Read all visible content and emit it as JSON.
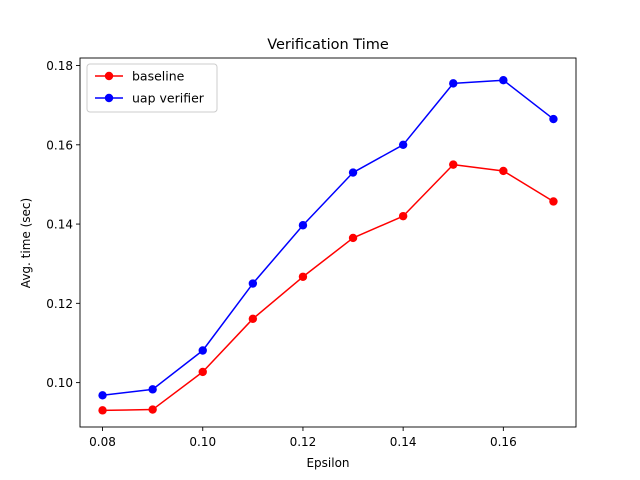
{
  "chart_data": {
    "type": "line",
    "title": "Verification Time",
    "xlabel": "Epsilon",
    "ylabel": "Avg. time (sec)",
    "x": [
      0.08,
      0.09,
      0.1,
      0.11,
      0.12,
      0.13,
      0.14,
      0.15,
      0.16,
      0.17
    ],
    "xlim": [
      0.0755,
      0.1745
    ],
    "ylim": [
      0.0888,
      0.1819
    ],
    "xticks": [
      0.08,
      0.1,
      0.12,
      0.14,
      0.16
    ],
    "xtick_labels": [
      "0.08",
      "0.10",
      "0.12",
      "0.14",
      "0.16"
    ],
    "yticks": [
      0.1,
      0.12,
      0.14,
      0.16,
      0.18
    ],
    "ytick_labels": [
      "0.10",
      "0.12",
      "0.14",
      "0.16",
      "0.18"
    ],
    "grid": false,
    "legend_position": "top-left",
    "series": [
      {
        "name": "baseline",
        "color": "#ff0000",
        "marker": "circle",
        "values": [
          0.093,
          0.0932,
          0.1027,
          0.1161,
          0.1267,
          0.1365,
          0.142,
          0.155,
          0.1534,
          0.1457
        ]
      },
      {
        "name": "uap verifier",
        "color": "#0000ff",
        "marker": "circle",
        "values": [
          0.0968,
          0.0983,
          0.1081,
          0.125,
          0.1397,
          0.153,
          0.16,
          0.1755,
          0.1763,
          0.1665
        ]
      }
    ]
  }
}
